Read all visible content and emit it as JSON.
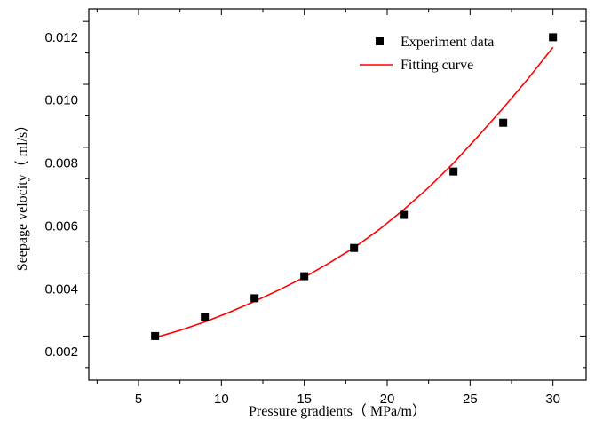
{
  "chart_data": {
    "type": "scatter",
    "xlabel": "Pressure gradients（ MPa/m）",
    "ylabel": "Seepage velocity（ ml/s）",
    "xlim": [
      2,
      32
    ],
    "ylim": [
      0.0011,
      0.0129
    ],
    "x_ticks": [
      5,
      10,
      15,
      20,
      25,
      30
    ],
    "x_tick_labels": [
      "5",
      "10",
      "15",
      "20",
      "25",
      "30"
    ],
    "y_ticks": [
      0.002,
      0.004,
      0.006,
      0.008,
      0.01,
      0.012
    ],
    "y_tick_labels": [
      "0.002",
      "0.004",
      "0.006",
      "0.008",
      "0.010",
      "0.012"
    ],
    "grid": false,
    "legend_position": "top-right",
    "series": [
      {
        "name": "Experiment data",
        "kind": "scatter",
        "marker": "square",
        "color": "#000000",
        "x": [
          6,
          9,
          12,
          15,
          18,
          21,
          24,
          27,
          30
        ],
        "y": [
          0.0025,
          0.0031,
          0.0037,
          0.0044,
          0.0053,
          0.00635,
          0.00773,
          0.00928,
          0.012
        ]
      },
      {
        "name": "Fitting curve",
        "kind": "line",
        "color": "#ff0000",
        "x": [
          6,
          7.5,
          9,
          10.5,
          12,
          13.5,
          15,
          16.5,
          18,
          19.5,
          21,
          22.5,
          24,
          25.5,
          27,
          28.5,
          30
        ],
        "y": [
          0.00245,
          0.00268,
          0.00295,
          0.00326,
          0.0036,
          0.00397,
          0.00437,
          0.00482,
          0.00531,
          0.00588,
          0.00652,
          0.00722,
          0.008,
          0.00886,
          0.00975,
          0.01068,
          0.01168
        ]
      }
    ]
  }
}
